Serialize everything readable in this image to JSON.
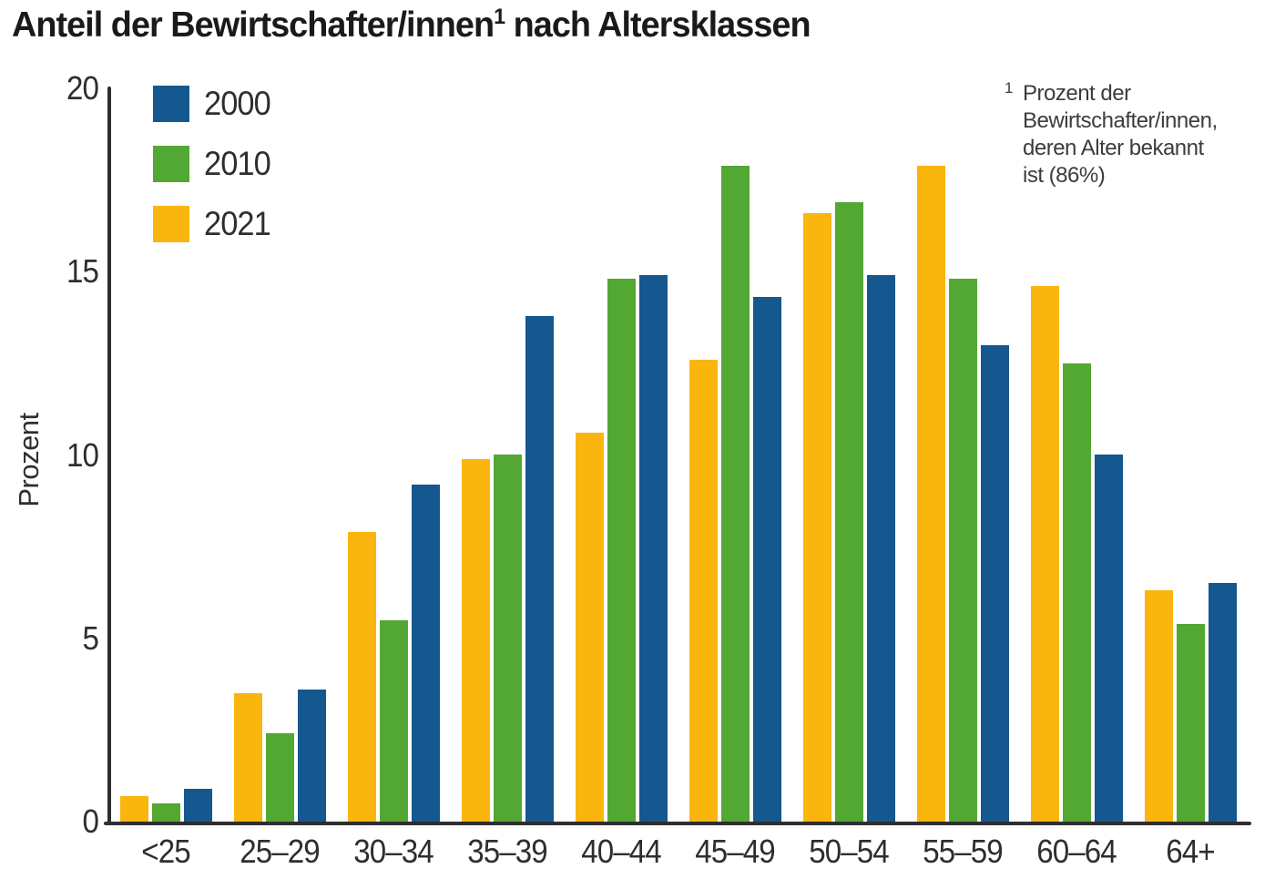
{
  "title": {
    "prefix": "Anteil der Bewirtschafter/innen",
    "superscript": "1",
    "suffix": " nach Altersklassen"
  },
  "chart_data": {
    "type": "bar",
    "subtype": "grouped-vertical",
    "title": "Anteil der Bewirtschafter/innen¹ nach Altersklassen",
    "xlabel": "",
    "ylabel": "Prozent",
    "ylim": [
      0,
      20
    ],
    "yticks": [
      0,
      5,
      10,
      15,
      20
    ],
    "grid": false,
    "legend_position": "top-left-inside",
    "legend_order": [
      "2000",
      "2010",
      "2021"
    ],
    "bar_order_left_to_right": [
      "2021",
      "2010",
      "2000"
    ],
    "categories": [
      "<25",
      "25–29",
      "30–34",
      "35–39",
      "40–44",
      "45–49",
      "50–54",
      "55–59",
      "60–64",
      "64+"
    ],
    "series": [
      {
        "name": "2000",
        "color": "#15578F",
        "values": [
          0.9,
          3.6,
          9.2,
          13.8,
          14.9,
          14.3,
          14.9,
          13.0,
          10.0,
          6.5
        ]
      },
      {
        "name": "2010",
        "color": "#53A733",
        "values": [
          0.5,
          2.4,
          5.5,
          10.0,
          14.8,
          17.9,
          16.9,
          14.8,
          12.5,
          5.4
        ]
      },
      {
        "name": "2021",
        "color": "#FBB50F",
        "values": [
          0.7,
          3.5,
          7.9,
          9.9,
          10.6,
          12.6,
          16.6,
          17.9,
          14.6,
          6.3
        ]
      }
    ],
    "footnote": {
      "superscript": "1",
      "lines": [
        "Prozent der",
        "Bewirtschafter/innen,",
        "deren Alter bekannt",
        "ist (86%)"
      ],
      "text": "Prozent der Bewirtschafter/innen, deren Alter bekannt ist (86%)"
    }
  },
  "colors": {
    "axis": "#2E2E2E",
    "title_text": "#1A1A1A",
    "tick_text": "#2E2E2E",
    "footnote_text": "#3C3C3C",
    "background": "#FFFFFF"
  }
}
